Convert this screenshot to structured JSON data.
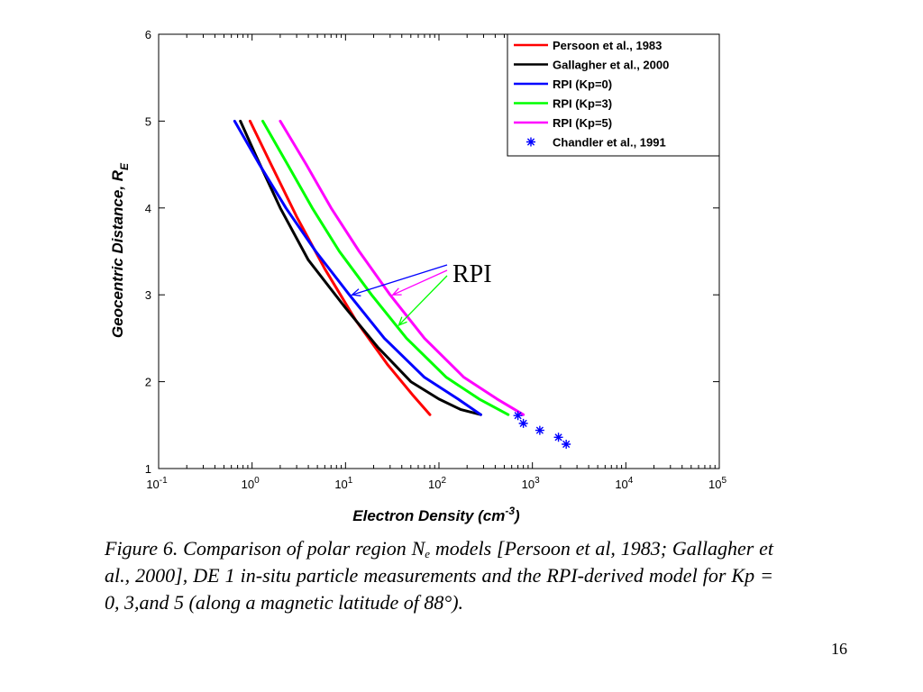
{
  "chart_data": {
    "type": "line",
    "title": "",
    "xlabel": "Electron Density (cm",
    "xlabel_sup": "-3",
    "xlabel_end": ")",
    "ylabel": "Geocentric Distance, R",
    "ylabel_sub": "E",
    "xscale": "log",
    "xlim": [
      0.1,
      100000
    ],
    "ylim": [
      1,
      6
    ],
    "grid": false,
    "legend_position": "top-right",
    "x_ticks": [
      {
        "base": "10",
        "exp": "-1"
      },
      {
        "base": "10",
        "exp": "0"
      },
      {
        "base": "10",
        "exp": "1"
      },
      {
        "base": "10",
        "exp": "2"
      },
      {
        "base": "10",
        "exp": "3"
      },
      {
        "base": "10",
        "exp": "4"
      },
      {
        "base": "10",
        "exp": "5"
      }
    ],
    "y_ticks": [
      "1",
      "2",
      "3",
      "4",
      "5",
      "6"
    ],
    "series": [
      {
        "name": "Persoon et al., 1983",
        "color": "#ff0000",
        "marker": "line",
        "points": [
          [
            0.95,
            5.0
          ],
          [
            1.6,
            4.5
          ],
          [
            3.0,
            3.9
          ],
          [
            6.0,
            3.3
          ],
          [
            13,
            2.7
          ],
          [
            28,
            2.2
          ],
          [
            52,
            1.85
          ],
          [
            80,
            1.62
          ]
        ]
      },
      {
        "name": "Gallagher et al., 2000",
        "color": "#000000",
        "marker": "line",
        "points": [
          [
            0.75,
            5.0
          ],
          [
            1.1,
            4.6
          ],
          [
            2.0,
            4.0
          ],
          [
            4.0,
            3.4
          ],
          [
            10,
            2.85
          ],
          [
            22,
            2.4
          ],
          [
            50,
            2.0
          ],
          [
            100,
            1.8
          ],
          [
            170,
            1.68
          ],
          [
            280,
            1.62
          ]
        ]
      },
      {
        "name": "RPI (Kp=0)",
        "color": "#0000ff",
        "marker": "line",
        "points": [
          [
            0.65,
            5.0
          ],
          [
            1.2,
            4.5
          ],
          [
            2.3,
            4.0
          ],
          [
            4.8,
            3.5
          ],
          [
            11,
            3.0
          ],
          [
            26,
            2.5
          ],
          [
            70,
            2.05
          ],
          [
            160,
            1.8
          ],
          [
            280,
            1.62
          ]
        ]
      },
      {
        "name": "RPI (Kp=3)",
        "color": "#00ff00",
        "marker": "line",
        "points": [
          [
            1.3,
            5.0
          ],
          [
            2.4,
            4.5
          ],
          [
            4.4,
            4.0
          ],
          [
            8.6,
            3.5
          ],
          [
            19,
            3.0
          ],
          [
            45,
            2.5
          ],
          [
            120,
            2.05
          ],
          [
            270,
            1.8
          ],
          [
            550,
            1.62
          ]
        ]
      },
      {
        "name": "RPI (Kp=5)",
        "color": "#ff00ff",
        "marker": "line",
        "points": [
          [
            2.0,
            5.0
          ],
          [
            3.8,
            4.5
          ],
          [
            7.0,
            4.0
          ],
          [
            14,
            3.5
          ],
          [
            30,
            3.0
          ],
          [
            70,
            2.5
          ],
          [
            185,
            2.05
          ],
          [
            420,
            1.8
          ],
          [
            800,
            1.62
          ]
        ]
      },
      {
        "name": "Chandler et al., 1991",
        "color": "#0000ff",
        "marker": "star",
        "points": [
          [
            700,
            1.61
          ],
          [
            800,
            1.52
          ],
          [
            1200,
            1.44
          ],
          [
            1900,
            1.36
          ],
          [
            2300,
            1.28
          ]
        ]
      }
    ],
    "annotation": {
      "text": "RPI"
    }
  },
  "caption": {
    "part1": "Figure 6.  Comparison of polar region N",
    "sub": "e",
    "part2": " models [Persoon et al, 1983; Gallagher et al., 2000], DE 1 in-situ particle measurements and the RPI-derived model for Kp = 0, 3,and 5 (along a magnetic latitude of 88°)."
  },
  "page_number": "16"
}
